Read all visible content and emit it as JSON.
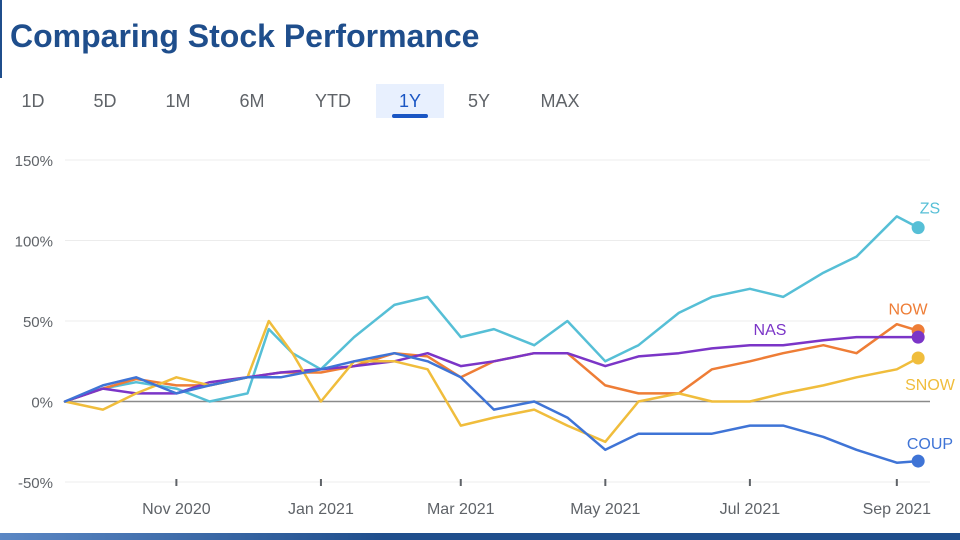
{
  "page": {
    "title": "Comparing Stock Performance"
  },
  "tabs": [
    {
      "label": "1D",
      "active": false
    },
    {
      "label": "5D",
      "active": false
    },
    {
      "label": "1M",
      "active": false
    },
    {
      "label": "6M",
      "active": false
    },
    {
      "label": "YTD",
      "active": false
    },
    {
      "label": "1Y",
      "active": true
    },
    {
      "label": "5Y",
      "active": false
    },
    {
      "label": "MAX",
      "active": false
    }
  ],
  "chart_data": {
    "type": "line",
    "ylim": [
      -50,
      150
    ],
    "y_ticks": [
      -50,
      0,
      50,
      100,
      150
    ],
    "y_tick_labels": [
      "-50%",
      "0%",
      "50%",
      "100%",
      "150%"
    ],
    "x_range": [
      "2020-09-15",
      "2021-09-15"
    ],
    "x_ticks": [
      "2020-11-01",
      "2021-01-01",
      "2021-03-01",
      "2021-05-01",
      "2021-07-01",
      "2021-09-01"
    ],
    "x_tick_labels": [
      "Nov 2020",
      "Jan 2021",
      "Mar 2021",
      "May 2021",
      "Jul 2021",
      "Sep 2021"
    ],
    "grid": true,
    "series": [
      {
        "name": "ZS",
        "color": "#56bfd6",
        "x": [
          "2020-09-15",
          "2020-10-01",
          "2020-10-15",
          "2020-11-01",
          "2020-11-15",
          "2020-12-01",
          "2020-12-10",
          "2020-12-20",
          "2021-01-01",
          "2021-01-15",
          "2021-02-01",
          "2021-02-15",
          "2021-03-01",
          "2021-03-15",
          "2021-04-01",
          "2021-04-15",
          "2021-05-01",
          "2021-05-15",
          "2021-06-01",
          "2021-06-15",
          "2021-07-01",
          "2021-07-15",
          "2021-08-01",
          "2021-08-15",
          "2021-09-01",
          "2021-09-10"
        ],
        "values": [
          0,
          8,
          12,
          8,
          0,
          5,
          45,
          30,
          20,
          40,
          60,
          65,
          40,
          45,
          35,
          50,
          25,
          35,
          55,
          65,
          70,
          65,
          80,
          90,
          115,
          108
        ]
      },
      {
        "name": "NOW",
        "color": "#ee7d36",
        "x": [
          "2020-09-15",
          "2020-10-01",
          "2020-10-15",
          "2020-11-01",
          "2020-11-15",
          "2020-12-01",
          "2020-12-15",
          "2021-01-01",
          "2021-01-15",
          "2021-02-01",
          "2021-02-15",
          "2021-03-01",
          "2021-03-15",
          "2021-04-01",
          "2021-04-15",
          "2021-05-01",
          "2021-05-15",
          "2021-06-01",
          "2021-06-15",
          "2021-07-01",
          "2021-07-15",
          "2021-08-01",
          "2021-08-15",
          "2021-09-01",
          "2021-09-10"
        ],
        "values": [
          0,
          8,
          14,
          10,
          10,
          15,
          18,
          18,
          22,
          30,
          28,
          15,
          25,
          30,
          30,
          10,
          5,
          5,
          20,
          25,
          30,
          35,
          30,
          48,
          44
        ]
      },
      {
        "name": "NAS",
        "color": "#7b35c7",
        "x": [
          "2020-09-15",
          "2020-10-01",
          "2020-10-15",
          "2020-11-01",
          "2020-11-15",
          "2020-12-01",
          "2020-12-15",
          "2021-01-01",
          "2021-01-15",
          "2021-02-01",
          "2021-02-15",
          "2021-03-01",
          "2021-03-15",
          "2021-04-01",
          "2021-04-15",
          "2021-05-01",
          "2021-05-15",
          "2021-06-01",
          "2021-06-15",
          "2021-07-01",
          "2021-07-15",
          "2021-08-01",
          "2021-08-15",
          "2021-09-01",
          "2021-09-10"
        ],
        "values": [
          0,
          8,
          5,
          5,
          12,
          15,
          18,
          20,
          22,
          25,
          30,
          22,
          25,
          30,
          30,
          22,
          28,
          30,
          33,
          35,
          35,
          38,
          40,
          40,
          40
        ]
      },
      {
        "name": "SNOW",
        "color": "#f0bd3c",
        "x": [
          "2020-09-15",
          "2020-10-01",
          "2020-10-15",
          "2020-11-01",
          "2020-11-15",
          "2020-12-01",
          "2020-12-10",
          "2020-12-20",
          "2021-01-01",
          "2021-01-15",
          "2021-02-01",
          "2021-02-15",
          "2021-03-01",
          "2021-03-15",
          "2021-04-01",
          "2021-04-15",
          "2021-05-01",
          "2021-05-15",
          "2021-06-01",
          "2021-06-15",
          "2021-07-01",
          "2021-07-15",
          "2021-08-01",
          "2021-08-15",
          "2021-09-01",
          "2021-09-10"
        ],
        "values": [
          0,
          -5,
          5,
          15,
          10,
          15,
          50,
          30,
          0,
          25,
          25,
          20,
          -15,
          -10,
          -5,
          -15,
          -25,
          0,
          5,
          0,
          0,
          5,
          10,
          15,
          20,
          27
        ]
      },
      {
        "name": "COUP",
        "color": "#3f74d6",
        "x": [
          "2020-09-15",
          "2020-10-01",
          "2020-10-15",
          "2020-11-01",
          "2020-11-15",
          "2020-12-01",
          "2020-12-15",
          "2021-01-01",
          "2021-01-15",
          "2021-02-01",
          "2021-02-15",
          "2021-03-01",
          "2021-03-15",
          "2021-04-01",
          "2021-04-15",
          "2021-05-01",
          "2021-05-15",
          "2021-06-01",
          "2021-06-15",
          "2021-07-01",
          "2021-07-15",
          "2021-08-01",
          "2021-08-15",
          "2021-09-01",
          "2021-09-10"
        ],
        "values": [
          0,
          10,
          15,
          5,
          10,
          15,
          15,
          20,
          25,
          30,
          25,
          15,
          -5,
          0,
          -10,
          -30,
          -20,
          -20,
          -20,
          -15,
          -15,
          -22,
          -30,
          -38,
          -37
        ]
      }
    ]
  }
}
